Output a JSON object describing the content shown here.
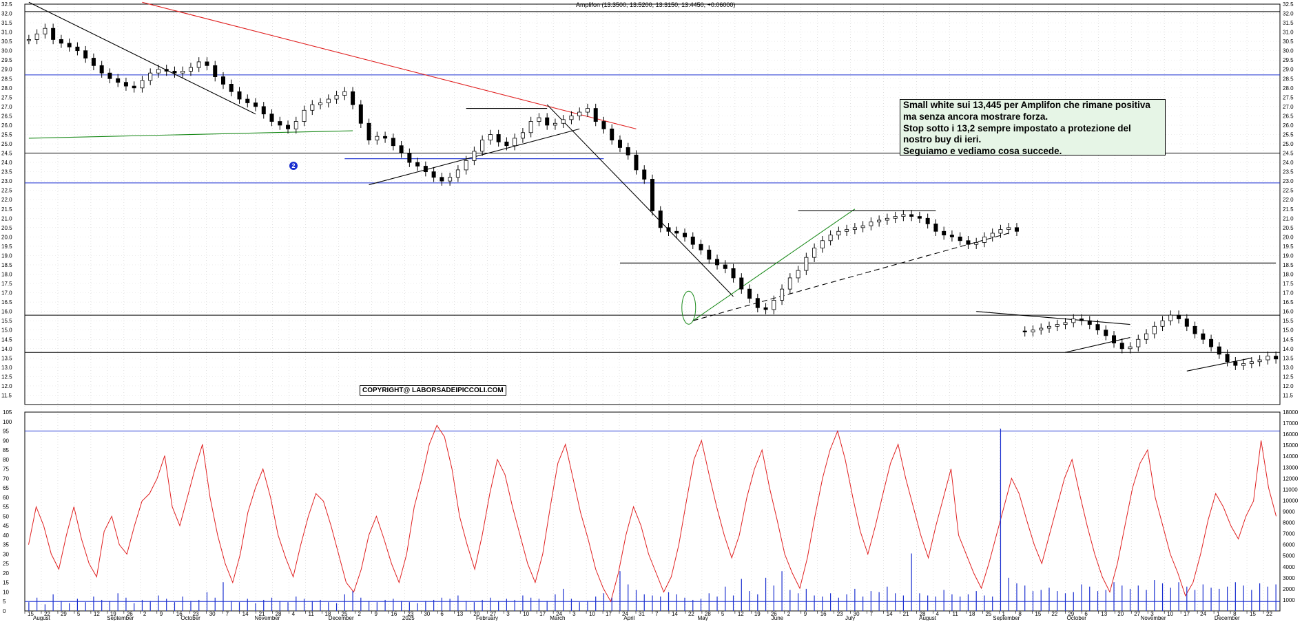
{
  "chart_data": [
    {
      "type": "candlestick",
      "title": "Amplifon (13.3500, 13.5200, 13.3150, 13.4450, +0.06000)",
      "ylim": [
        11.0,
        32.5
      ],
      "yticks": [
        "11.5",
        "12.0",
        "12.5",
        "13.0",
        "13.5",
        "14.0",
        "14.5",
        "15.0",
        "15.5",
        "16.0",
        "16.5",
        "17.0",
        "17.5",
        "18.0",
        "18.5",
        "19.0",
        "19.5",
        "20.0",
        "20.5",
        "21.0",
        "21.5",
        "22.0",
        "22.5",
        "23.0",
        "23.5",
        "24.0",
        "24.5",
        "25.0",
        "25.5",
        "26.0",
        "26.5",
        "27.0",
        "27.5",
        "28.0",
        "28.5",
        "29.0",
        "29.5",
        "30.0",
        "30.5",
        "31.0",
        "31.5",
        "32.0",
        "32.5"
      ],
      "horizontal_levels": [
        {
          "value": 32.1,
          "color": "#000000"
        },
        {
          "value": 28.7,
          "color": "#1a2fd0"
        },
        {
          "value": 24.5,
          "color": "#000000"
        },
        {
          "value": 22.9,
          "color": "#1a2fd0"
        },
        {
          "value": 15.8,
          "color": "#000000"
        },
        {
          "value": 13.8,
          "color": "#000000"
        }
      ],
      "segments": [
        {
          "x1": 0,
          "y1": 32.6,
          "x2": 28,
          "y2": 26.6,
          "color": "#000000",
          "dash": false
        },
        {
          "x1": 14,
          "y1": 32.6,
          "x2": 75,
          "y2": 25.8,
          "color": "#e02020",
          "dash": false
        },
        {
          "x1": 0,
          "y1": 25.3,
          "x2": 40,
          "y2": 25.7,
          "color": "#1a8a1a",
          "dash": false
        },
        {
          "x1": 39,
          "y1": 24.2,
          "x2": 71,
          "y2": 24.2,
          "color": "#1a2fd0",
          "dash": false
        },
        {
          "x1": 42,
          "y1": 22.8,
          "x2": 68,
          "y2": 25.8,
          "color": "#000000",
          "dash": false
        },
        {
          "x1": 54,
          "y1": 26.9,
          "x2": 64,
          "y2": 26.9,
          "color": "#000000",
          "dash": false
        },
        {
          "x1": 64,
          "y1": 27.1,
          "x2": 87,
          "y2": 16.8,
          "color": "#000000",
          "dash": false
        },
        {
          "x1": 73,
          "y1": 18.6,
          "x2": 154,
          "y2": 18.6,
          "color": "#000000",
          "dash": false
        },
        {
          "x1": 82,
          "y1": 15.5,
          "x2": 102,
          "y2": 21.5,
          "color": "#1a8a1a",
          "dash": false
        },
        {
          "x1": 82,
          "y1": 15.5,
          "x2": 121,
          "y2": 20.2,
          "color": "#000000",
          "dash": true
        },
        {
          "x1": 95,
          "y1": 21.4,
          "x2": 112,
          "y2": 21.4,
          "color": "#000000",
          "dash": false
        },
        {
          "x1": 117,
          "y1": 16.0,
          "x2": 136,
          "y2": 15.3,
          "color": "#000000",
          "dash": false
        },
        {
          "x1": 128,
          "y1": 13.8,
          "x2": 136,
          "y2": 14.6,
          "color": "#000000",
          "dash": false
        },
        {
          "x1": 143,
          "y1": 12.8,
          "x2": 151,
          "y2": 13.5,
          "color": "#000000",
          "dash": false
        }
      ],
      "annotations": {
        "marker_label": "2",
        "copyright": "COPYRIGHT@ LABORSADEIPICCOLI.COM",
        "note_lines": [
          "Small white sui 13,445 per Amplifon che rimane positiva",
          "ma senza ancora mostrare forza.",
          "Stop sotto i 13,2 sempre impostato a protezione del",
          "nostro buy di ieri.",
          "Seguiamo e vediamo cosa succede."
        ]
      },
      "series_close": [
        30.6,
        30.9,
        31.2,
        30.6,
        30.4,
        30.2,
        30.0,
        29.6,
        29.2,
        28.8,
        28.5,
        28.3,
        28.1,
        28.0,
        28.4,
        28.8,
        29.0,
        28.9,
        28.8,
        28.9,
        29.1,
        29.4,
        29.2,
        28.6,
        28.2,
        27.8,
        27.4,
        27.2,
        27.0,
        26.6,
        26.2,
        26.0,
        25.8,
        26.2,
        26.8,
        27.1,
        27.2,
        27.4,
        27.6,
        27.8,
        27.1,
        26.1,
        25.2,
        25.4,
        25.3,
        24.9,
        24.5,
        24.0,
        23.8,
        23.5,
        23.2,
        23.0,
        23.2,
        23.6,
        24.1,
        24.6,
        25.2,
        25.5,
        25.1,
        24.9,
        25.3,
        25.6,
        26.2,
        26.4,
        26.0,
        26.1,
        26.3,
        26.5,
        26.7,
        26.9,
        26.2,
        25.8,
        25.2,
        24.8,
        24.4,
        23.6,
        23.1,
        21.4,
        20.5,
        20.3,
        20.2,
        20.0,
        19.6,
        19.3,
        18.8,
        18.5,
        18.3,
        17.8,
        17.2,
        16.7,
        16.2,
        16.1,
        16.6,
        17.2,
        17.8,
        18.2,
        18.9,
        19.4,
        19.8,
        20.1,
        20.3,
        20.4,
        20.5,
        20.6,
        20.8,
        20.9,
        21.0,
        21.1,
        21.2,
        21.1,
        21.0,
        20.7,
        20.3,
        20.1,
        20.0,
        19.8,
        19.6,
        19.7,
        20.0,
        20.2,
        20.4,
        20.5,
        20.3,
        14.9,
        15.0,
        15.1,
        15.2,
        15.3,
        15.4,
        15.6,
        15.5,
        15.3,
        15.0,
        14.7,
        14.3,
        14.0,
        14.1,
        14.5,
        14.8,
        15.2,
        15.5,
        15.8,
        15.6,
        15.2,
        14.8,
        14.5,
        14.1,
        13.7,
        13.3,
        13.1,
        13.2,
        13.3,
        13.4,
        13.6,
        13.445
      ],
      "x_tick_days": [
        "15",
        "22",
        "29",
        "5",
        "12",
        "19",
        "26",
        "2",
        "9",
        "16",
        "23",
        "30",
        "7",
        "14",
        "21",
        "28",
        "4",
        "11",
        "18",
        "25",
        "2",
        "9",
        "16",
        "23",
        "30",
        "6",
        "13",
        "20",
        "27",
        "3",
        "10",
        "17",
        "24",
        "3",
        "10",
        "17",
        "24",
        "31",
        "7",
        "14",
        "22",
        "28",
        "5",
        "12",
        "19",
        "26",
        "2",
        "9",
        "16",
        "23",
        "30",
        "7",
        "14",
        "21",
        "28",
        "4",
        "11",
        "18",
        "25",
        "1",
        "8",
        "15",
        "22",
        "29",
        "6",
        "13",
        "20",
        "27",
        "3",
        "10",
        "17",
        "24",
        "1",
        "8",
        "15",
        "22"
      ],
      "x_tick_months": [
        "August",
        "September",
        "October",
        "November",
        "December",
        "2025",
        "February",
        "March",
        "April",
        "May",
        "June",
        "July",
        "August",
        "September",
        "October",
        "November",
        "December"
      ]
    },
    {
      "type": "line",
      "name": "oscillator",
      "ylim": [
        0,
        105
      ],
      "yticks": [
        "0",
        "5",
        "10",
        "15",
        "20",
        "25",
        "30",
        "35",
        "40",
        "45",
        "50",
        "55",
        "60",
        "65",
        "70",
        "75",
        "80",
        "85",
        "90",
        "95",
        "100",
        "105"
      ],
      "upper_level": 95,
      "lower_level": 5,
      "values": [
        35,
        55,
        45,
        30,
        22,
        40,
        55,
        38,
        25,
        18,
        42,
        50,
        35,
        30,
        45,
        58,
        62,
        70,
        82,
        55,
        45,
        60,
        75,
        88,
        60,
        40,
        25,
        15,
        30,
        52,
        65,
        75,
        60,
        40,
        28,
        18,
        35,
        50,
        62,
        58,
        45,
        30,
        15,
        10,
        22,
        40,
        50,
        38,
        25,
        15,
        30,
        55,
        70,
        88,
        98,
        92,
        75,
        50,
        35,
        22,
        40,
        62,
        80,
        72,
        55,
        40,
        25,
        15,
        30,
        55,
        78,
        88,
        70,
        52,
        38,
        22,
        12,
        5,
        20,
        40,
        55,
        45,
        30,
        20,
        10,
        18,
        35,
        58,
        80,
        90,
        72,
        55,
        40,
        28,
        40,
        60,
        75,
        85,
        65,
        48,
        30,
        20,
        12,
        28,
        50,
        70,
        85,
        95,
        80,
        60,
        42,
        30,
        45,
        62,
        78,
        88,
        70,
        55,
        40,
        28,
        45,
        60,
        75,
        40,
        30,
        20,
        12,
        25,
        40,
        55,
        70,
        62,
        48,
        35,
        25,
        40,
        55,
        70,
        80,
        62,
        45,
        30,
        18,
        10,
        25,
        45,
        65,
        78,
        85,
        60,
        45,
        30,
        20,
        8,
        15,
        30,
        48,
        62,
        55,
        45,
        38,
        50,
        58,
        90,
        65,
        50
      ]
    },
    {
      "type": "bar",
      "name": "volume",
      "ylim": [
        0,
        18000
      ],
      "yticks": [
        "1000",
        "2000",
        "3000",
        "4000",
        "5000",
        "6000",
        "7000",
        "8000",
        "9000",
        "10000",
        "11000",
        "12000",
        "13000",
        "14000",
        "15000",
        "16000",
        "17000",
        "18000"
      ],
      "values": [
        800,
        1200,
        600,
        1500,
        900,
        700,
        1100,
        800,
        1300,
        1000,
        900,
        1600,
        1200,
        700,
        1000,
        900,
        1400,
        1100,
        800,
        1300,
        900,
        1000,
        1700,
        1200,
        2600,
        900,
        800,
        1100,
        700,
        1000,
        1200,
        900,
        800,
        1300,
        1100,
        900,
        1000,
        800,
        700,
        1500,
        1800,
        1200,
        900,
        800,
        1000,
        1100,
        900,
        800,
        700,
        900,
        1000,
        1200,
        1100,
        1400,
        900,
        800,
        1000,
        1200,
        900,
        1100,
        1000,
        1400,
        1200,
        1100,
        900,
        1500,
        2000,
        1100,
        800,
        900,
        1300,
        1600,
        1200,
        3600,
        2400,
        1900,
        1500,
        1400,
        1300,
        1700,
        1500,
        1200,
        1000,
        1100,
        1600,
        1300,
        2200,
        1400,
        2900,
        1800,
        1500,
        3000,
        2300,
        3600,
        1900,
        1600,
        2000,
        1400,
        1300,
        1600,
        1200,
        1500,
        2000,
        1300,
        1800,
        1700,
        2200,
        1600,
        1400,
        5200,
        1600,
        1400,
        1300,
        1900,
        1500,
        1300,
        1500,
        1800,
        1400,
        1300,
        16500,
        3000,
        2500,
        2300,
        1800,
        1900,
        2100,
        1800,
        1600,
        1700,
        2400,
        2200,
        1800,
        1900,
        2600,
        2300,
        2000,
        2300,
        1900,
        2800,
        2500,
        2100,
        2600,
        2200,
        1900,
        2400,
        2100,
        2000,
        2200,
        2600,
        2300,
        1900,
        2500,
        2200,
        2400
      ]
    }
  ]
}
